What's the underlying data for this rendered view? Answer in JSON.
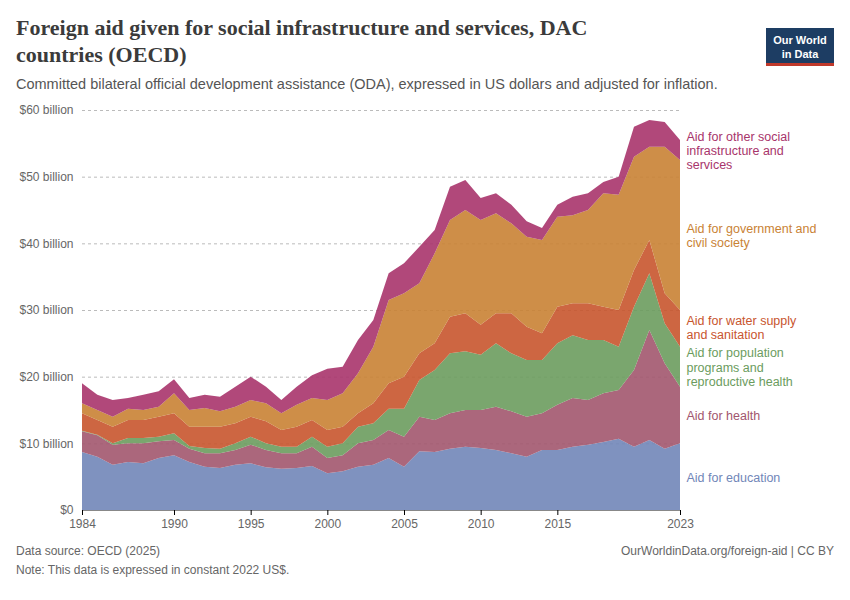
{
  "chart_data": {
    "type": "area",
    "title": "Foreign aid given for social infrastructure and services, DAC countries (OECD)",
    "subtitle": "Committed bilateral official development assistance (ODA), expressed in US dollars and adjusted for inflation.",
    "logo": "Our World\nin Data",
    "source": "Data source: OECD (2025)",
    "url": "OurWorldinData.org/foreign-aid | CC BY",
    "note": "Note: This data is expressed in constant 2022 US$.",
    "stacked": true,
    "grid": true,
    "x": [
      1984,
      1985,
      1986,
      1987,
      1988,
      1989,
      1990,
      1991,
      1992,
      1993,
      1994,
      1995,
      1996,
      1997,
      1998,
      1999,
      2000,
      2001,
      2002,
      2003,
      2004,
      2005,
      2006,
      2007,
      2008,
      2009,
      2010,
      2011,
      2012,
      2013,
      2014,
      2015,
      2016,
      2017,
      2018,
      2019,
      2020,
      2021,
      2022,
      2023
    ],
    "xlim": [
      1984,
      2023
    ],
    "xticks": [
      1984,
      1990,
      1995,
      2000,
      2005,
      2010,
      2015,
      2023
    ],
    "ylim": [
      0,
      60
    ],
    "yticks": [
      {
        "value": 0,
        "label": "$0"
      },
      {
        "value": 10,
        "label": "$10 billion"
      },
      {
        "value": 20,
        "label": "$20 billion"
      },
      {
        "value": 30,
        "label": "$30 billion"
      },
      {
        "value": 40,
        "label": "$40 billion"
      },
      {
        "value": 50,
        "label": "$50 billion"
      },
      {
        "value": 60,
        "label": "$60 billion"
      }
    ],
    "series": [
      {
        "name": "Aid for education",
        "color": "#7186b8",
        "values": [
          8.7,
          8.0,
          6.8,
          7.2,
          7.0,
          7.8,
          8.2,
          7.2,
          6.5,
          6.3,
          6.8,
          7.0,
          6.4,
          6.2,
          6.3,
          6.6,
          5.5,
          5.8,
          6.5,
          6.8,
          7.8,
          6.5,
          8.8,
          8.7,
          9.2,
          9.5,
          9.3,
          9.0,
          8.5,
          8.0,
          9.0,
          9.0,
          9.5,
          9.8,
          10.2,
          10.7,
          9.5,
          10.5,
          9.2,
          10.0
        ]
      },
      {
        "name": "Aid for health",
        "color": "#a2566e",
        "values": [
          3.1,
          3.2,
          3.0,
          2.8,
          3.0,
          2.5,
          2.3,
          2.0,
          2.0,
          2.2,
          2.2,
          2.8,
          2.6,
          2.3,
          2.2,
          2.9,
          2.3,
          2.4,
          3.5,
          3.7,
          4.2,
          4.5,
          5.2,
          4.8,
          5.3,
          5.5,
          5.7,
          6.5,
          6.3,
          6.0,
          5.5,
          6.8,
          7.3,
          6.7,
          7.3,
          7.3,
          11.5,
          16.5,
          12.8,
          8.5
        ]
      },
      {
        "name": "Aid for population programs and reproductive health",
        "color": "#6b9c5e",
        "values": [
          0.1,
          0.1,
          0.2,
          0.8,
          0.8,
          0.7,
          1.0,
          0.4,
          0.8,
          0.7,
          1.0,
          1.2,
          1.0,
          1.0,
          1.0,
          1.5,
          1.7,
          1.8,
          2.5,
          2.5,
          3.2,
          4.2,
          5.5,
          7.5,
          9.0,
          8.8,
          8.3,
          9.5,
          8.7,
          8.5,
          8.0,
          9.2,
          9.4,
          9.0,
          8.0,
          6.5,
          9.5,
          8.5,
          6.0,
          6.0
        ]
      },
      {
        "name": "Aid for water supply and sanitation",
        "color": "#c8552e",
        "values": [
          2.6,
          2.2,
          2.5,
          2.7,
          2.7,
          3.0,
          3.0,
          2.9,
          3.2,
          3.3,
          3.0,
          3.0,
          3.3,
          2.5,
          3.0,
          2.5,
          2.5,
          2.5,
          2.0,
          3.0,
          3.8,
          4.8,
          4.0,
          4.0,
          5.5,
          5.7,
          4.5,
          4.5,
          6.0,
          5.0,
          4.0,
          5.5,
          4.8,
          5.5,
          5.0,
          5.5,
          5.5,
          5.0,
          4.5,
          5.5
        ]
      },
      {
        "name": "Aid for government and civil society",
        "color": "#c98234",
        "values": [
          1.5,
          1.5,
          1.5,
          1.7,
          1.5,
          1.5,
          3.0,
          2.5,
          2.8,
          2.3,
          2.5,
          2.5,
          2.7,
          2.5,
          3.3,
          3.3,
          4.5,
          5.0,
          6.0,
          8.5,
          12.5,
          12.5,
          10.5,
          13.5,
          14.5,
          15.5,
          15.7,
          15.0,
          13.5,
          13.5,
          14.0,
          13.5,
          13.2,
          14.0,
          17.0,
          17.3,
          17.0,
          14.0,
          22.0,
          22.5
        ]
      },
      {
        "name": "Aid for other social infrastructure and services",
        "color": "#a8346b",
        "values": [
          3.0,
          2.3,
          2.5,
          1.6,
          2.3,
          2.3,
          2.1,
          1.8,
          2.0,
          2.2,
          3.0,
          3.5,
          2.5,
          2.0,
          2.7,
          3.4,
          4.7,
          4.0,
          5.0,
          4.0,
          4.0,
          4.5,
          5.5,
          3.5,
          5.0,
          4.5,
          3.3,
          3.0,
          2.8,
          2.3,
          1.8,
          1.8,
          2.8,
          2.5,
          1.7,
          2.7,
          4.5,
          4.0,
          3.7,
          3.0
        ]
      }
    ]
  }
}
